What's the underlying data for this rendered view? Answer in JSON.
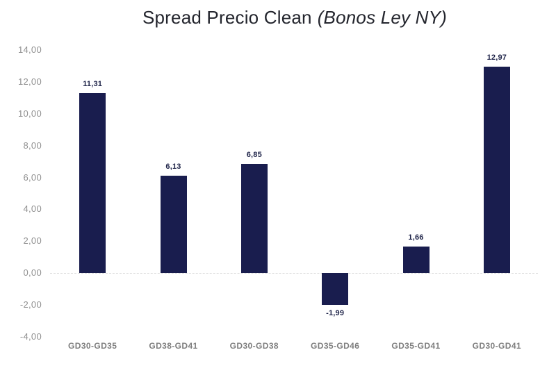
{
  "chart": {
    "title_main": "Spread Precio Clean",
    "title_italic": "(Bonos Ley NY)"
  },
  "chart_data": {
    "type": "bar",
    "title": "Spread Precio Clean (Bonos Ley NY)",
    "categories": [
      "GD30-GD35",
      "GD38-GD41",
      "GD30-GD38",
      "GD35-GD46",
      "GD35-GD41",
      "GD30-GD41"
    ],
    "values": [
      11.31,
      6.13,
      6.85,
      -1.99,
      1.66,
      12.97
    ],
    "value_labels": [
      "11,31",
      "6,13",
      "6,85",
      "-1,99",
      "1,66",
      "12,97"
    ],
    "xlabel": "",
    "ylabel": "",
    "ylim": [
      -4,
      14
    ],
    "y_tick_step": 2,
    "y_ticks": [
      14,
      12,
      10,
      8,
      6,
      4,
      2,
      0,
      -2,
      -4
    ],
    "y_tick_labels": [
      "14,00",
      "12,00",
      "10,00",
      "8,00",
      "6,00",
      "4,00",
      "2,00",
      "0,00",
      "-2,00",
      "-4,00"
    ],
    "grid": "zero-line-only",
    "legend": "none",
    "bar_color": "#191d4e",
    "value_label_color": "#1f2449",
    "y_axis_text_color": "#8f8f8f",
    "x_axis_text_color": "#7e7e7e",
    "zero_line_color": "#d9d9d9",
    "background_color": "#ffffff"
  }
}
